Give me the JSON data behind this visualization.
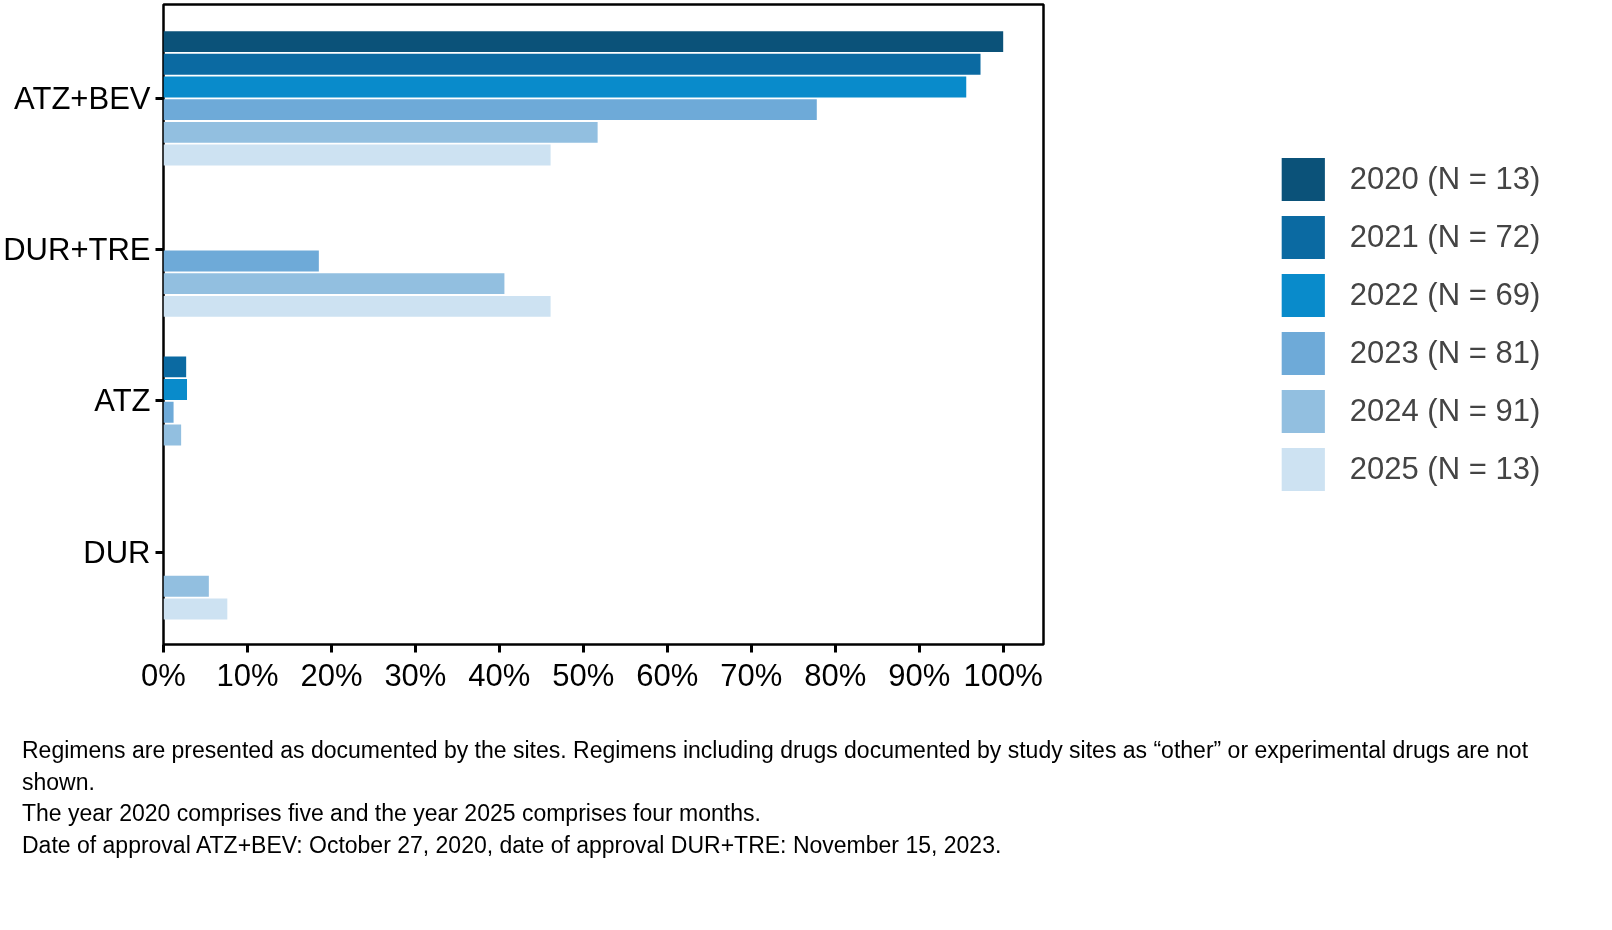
{
  "chart_data": {
    "type": "bar",
    "orientation": "horizontal",
    "categories": [
      "ATZ+BEV",
      "DUR+TRE",
      "ATZ",
      "DUR"
    ],
    "series": [
      {
        "name": "2020 (N = 13)",
        "color": "#0b5279",
        "values": [
          100,
          0,
          0,
          0
        ]
      },
      {
        "name": "2021 (N = 72)",
        "color": "#0b6aa2",
        "values": [
          97.3,
          0,
          2.7,
          0
        ]
      },
      {
        "name": "2022 (N = 69)",
        "color": "#098bcb",
        "values": [
          95.6,
          0,
          2.8,
          0
        ]
      },
      {
        "name": "2023 (N = 81)",
        "color": "#6eaad8",
        "values": [
          77.8,
          18.5,
          1.2,
          0
        ]
      },
      {
        "name": "2024 (N = 91)",
        "color": "#92bfe0",
        "values": [
          51.7,
          40.6,
          2.1,
          5.4
        ]
      },
      {
        "name": "2025 (N = 13)",
        "color": "#cde2f2",
        "values": [
          46.1,
          46.1,
          0,
          7.6
        ]
      }
    ],
    "xlim": [
      0,
      104.8
    ],
    "xticks": [
      {
        "value": 0,
        "label": "0%"
      },
      {
        "value": 10,
        "label": "10%"
      },
      {
        "value": 20,
        "label": "20%"
      },
      {
        "value": 30,
        "label": "30%"
      },
      {
        "value": 40,
        "label": "40%"
      },
      {
        "value": 50,
        "label": "50%"
      },
      {
        "value": 60,
        "label": "60%"
      },
      {
        "value": 70,
        "label": "70%"
      },
      {
        "value": 80,
        "label": "80%"
      },
      {
        "value": 90,
        "label": "90%"
      },
      {
        "value": 100,
        "label": "100%"
      }
    ],
    "grid": false,
    "legend": "right",
    "annotations": [
      "Regimens are presented as documented by the sites. Regimens including drugs documented by study sites as “other” or experimental drugs are not shown.",
      "The year 2020 comprises five and the year 2025 comprises four months.",
      "Date of approval ATZ+BEV: October 27, 2020, date of approval DUR+TRE: November 15, 2023."
    ]
  }
}
